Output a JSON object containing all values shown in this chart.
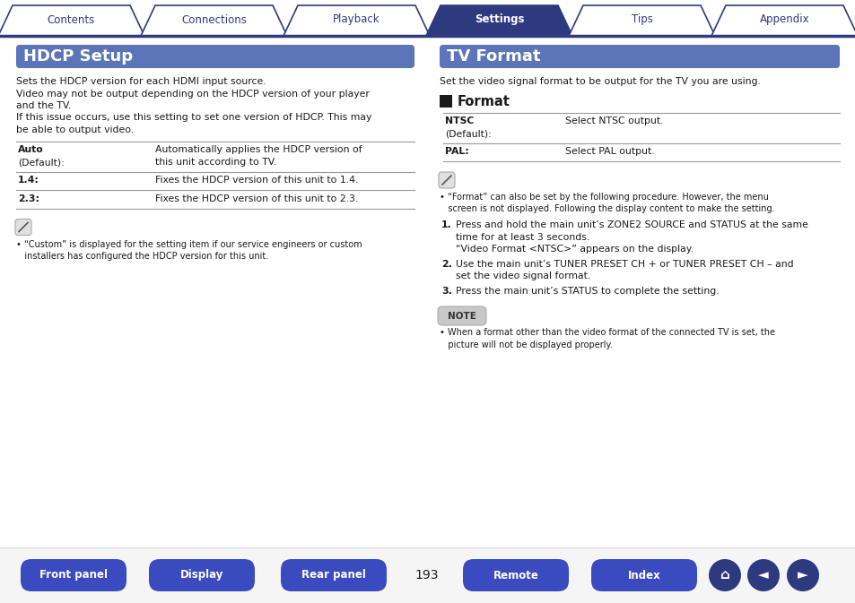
{
  "bg_color": "#ffffff",
  "nav_tabs": [
    "Contents",
    "Connections",
    "Playback",
    "Settings",
    "Tips",
    "Appendix"
  ],
  "nav_active": 3,
  "nav_color_active": "#2e3a80",
  "nav_color_inactive": "#ffffff",
  "nav_text_color_active": "#ffffff",
  "nav_text_color_inactive": "#2e3a80",
  "nav_border_color": "#2e3a80",
  "header_bg": "#5b75b8",
  "left_title": "HDCP Setup",
  "right_title": "TV Format",
  "left_body_lines": [
    "Sets the HDCP version for each HDMI input source.",
    "Video may not be output depending on the HDCP version of your player",
    "and the TV.",
    "If this issue occurs, use this setting to set one version of HDCP. This may",
    "be able to output video."
  ],
  "left_table": [
    {
      "key1": "Auto",
      "key2": "(Default):",
      "bold": true,
      "value": "Automatically applies the HDCP version of\nthis unit according to TV."
    },
    {
      "key1": "1.4:",
      "key2": "",
      "bold": true,
      "value": "Fixes the HDCP version of this unit to 1.4."
    },
    {
      "key1": "2.3:",
      "key2": "",
      "bold": true,
      "value": "Fixes the HDCP version of this unit to 2.3."
    }
  ],
  "left_note_lines": [
    "• “Custom” is displayed for the setting item if our service engineers or custom",
    "   installers has configured the HDCP version for this unit."
  ],
  "right_body": "Set the video signal format to be output for the TV you are using.",
  "right_format_title": "Format",
  "right_format_table": [
    {
      "key1": "NTSC",
      "key2": "(Default):",
      "bold": true,
      "value": "Select NTSC output."
    },
    {
      "key1": "PAL:",
      "key2": "",
      "bold": true,
      "value": "Select PAL output."
    }
  ],
  "right_note_lines": [
    "• “Format” can also be set by the following procedure. However, the menu",
    "   screen is not displayed. Following the display content to make the setting."
  ],
  "right_steps": [
    [
      "Press and hold the main unit’s ZONE2 SOURCE and STATUS at the same",
      "time for at least 3 seconds.",
      "“Video Format <NTSC>” appears on the display."
    ],
    [
      "Use the main unit’s TUNER PRESET CH + or TUNER PRESET CH – and",
      "set the video signal format."
    ],
    [
      "Press the main unit’s STATUS to complete the setting."
    ]
  ],
  "right_bottom_note_lines": [
    "• When a format other than the video format of the connected TV is set, the",
    "   picture will not be displayed properly."
  ],
  "page_number": "193",
  "bottom_buttons": [
    "Front panel",
    "Display",
    "Rear panel",
    "Remote",
    "Index"
  ],
  "btn_color": "#3a4bbf",
  "divider_color": "#2e3a80",
  "table_line_color": "#999999",
  "note_box_color": "#c8c8c8",
  "note_box_edge": "#aaaaaa"
}
